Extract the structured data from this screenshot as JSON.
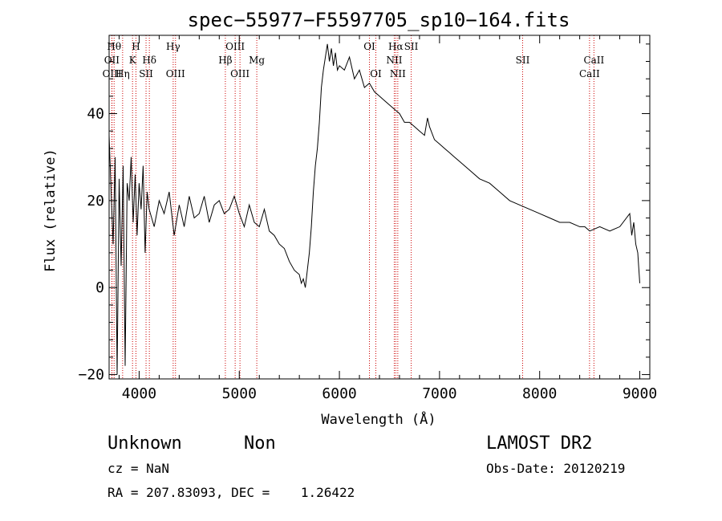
{
  "chart_data": {
    "type": "line",
    "title": "spec−55977−F5597705_sp10−164.fits",
    "xlabel": "Wavelength (Å)",
    "ylabel": "Flux (relative)",
    "xlim": [
      3700,
      9100
    ],
    "ylim": [
      -21,
      58
    ],
    "x_ticks": [
      4000,
      5000,
      6000,
      7000,
      8000,
      9000
    ],
    "x_tick_labels": [
      "4000",
      "5000",
      "6000",
      "7000",
      "8000",
      "9000"
    ],
    "y_ticks": [
      -20,
      0,
      20,
      40
    ],
    "y_tick_labels": [
      "−20",
      "0",
      "20",
      "40"
    ],
    "grid": false,
    "series": [
      {
        "color": "#000000",
        "x": [
          3700,
          3720,
          3740,
          3760,
          3780,
          3800,
          3820,
          3840,
          3860,
          3880,
          3900,
          3920,
          3940,
          3960,
          3980,
          4000,
          4020,
          4040,
          4060,
          4080,
          4100,
          4150,
          4200,
          4250,
          4300,
          4350,
          4400,
          4450,
          4500,
          4550,
          4600,
          4650,
          4700,
          4750,
          4800,
          4850,
          4900,
          4950,
          5000,
          5050,
          5100,
          5150,
          5200,
          5250,
          5300,
          5350,
          5400,
          5450,
          5500,
          5550,
          5600,
          5620,
          5640,
          5660,
          5680,
          5700,
          5720,
          5740,
          5760,
          5780,
          5800,
          5820,
          5840,
          5860,
          5880,
          5900,
          5920,
          5940,
          5960,
          5980,
          6000,
          6050,
          6100,
          6150,
          6200,
          6250,
          6300,
          6350,
          6400,
          6450,
          6500,
          6550,
          6600,
          6650,
          6700,
          6750,
          6800,
          6850,
          6880,
          6900,
          6950,
          7000,
          7050,
          7100,
          7150,
          7200,
          7300,
          7400,
          7500,
          7600,
          7700,
          7800,
          7900,
          8000,
          8100,
          8200,
          8300,
          8400,
          8450,
          8500,
          8600,
          8700,
          8800,
          8900,
          8920,
          8940,
          8960,
          8980,
          9000
        ],
        "y": [
          35,
          22,
          10,
          30,
          -20,
          25,
          5,
          28,
          -18,
          24,
          20,
          30,
          15,
          26,
          12,
          24,
          18,
          28,
          8,
          22,
          18,
          14,
          20,
          17,
          22,
          12,
          19,
          14,
          21,
          16,
          17,
          21,
          15,
          19,
          20,
          17,
          18,
          21,
          17,
          14,
          19,
          15,
          14,
          18,
          13,
          12,
          10,
          9,
          6,
          4,
          3,
          1,
          2,
          0,
          4,
          8,
          14,
          22,
          28,
          32,
          38,
          46,
          50,
          53,
          56,
          52,
          55,
          51,
          54,
          50,
          51,
          50,
          53,
          48,
          50,
          46,
          47,
          45,
          44,
          43,
          42,
          41,
          40,
          38,
          38,
          37,
          36,
          35,
          39,
          37,
          34,
          33,
          32,
          31,
          30,
          29,
          27,
          25,
          24,
          22,
          20,
          19,
          18,
          17,
          16,
          15,
          15,
          14,
          14,
          13,
          14,
          13,
          14,
          17,
          12,
          15,
          10,
          8,
          1
        ]
      }
    ],
    "lines": [
      {
        "x": 3727,
        "label": "OII",
        "row": 1
      },
      {
        "x": 3729,
        "label": "OIII",
        "row": 2
      },
      {
        "x": 3750,
        "label": "Hθ",
        "row": 0
      },
      {
        "x": 3835,
        "label": "Hη",
        "row": 2
      },
      {
        "x": 3934,
        "label": "K",
        "row": 1
      },
      {
        "x": 3968,
        "label": "H",
        "row": 0
      },
      {
        "x": 4069,
        "label": "SII",
        "row": 2
      },
      {
        "x": 4102,
        "label": "Hδ",
        "row": 1
      },
      {
        "x": 4340,
        "label": "Hγ",
        "row": 0
      },
      {
        "x": 4363,
        "label": "OIII",
        "row": 2
      },
      {
        "x": 4861,
        "label": "Hβ",
        "row": 1
      },
      {
        "x": 4959,
        "label": "OIII",
        "row": 0
      },
      {
        "x": 5007,
        "label": "OIII",
        "row": 2
      },
      {
        "x": 5175,
        "label": "Mg",
        "row": 1
      },
      {
        "x": 6300,
        "label": "OI",
        "row": 0
      },
      {
        "x": 6364,
        "label": "OI",
        "row": 2
      },
      {
        "x": 6548,
        "label": "NII",
        "row": 1
      },
      {
        "x": 6563,
        "label": "Hα",
        "row": 0
      },
      {
        "x": 6583,
        "label": "NII",
        "row": 2
      },
      {
        "x": 6717,
        "label": "SII",
        "row": 0
      },
      {
        "x": 7830,
        "label": "SII",
        "row": 1
      },
      {
        "x": 8498,
        "label": "CaII",
        "row": 2
      },
      {
        "x": 8542,
        "label": "CaII",
        "row": 1
      }
    ]
  },
  "info": {
    "class": "Unknown",
    "subclass": "Non",
    "cz": "cz = NaN",
    "coords": "RA = 207.83093, DEC =    1.26422",
    "survey": "LAMOST DR2",
    "obs_date": "Obs-Date: 20120219"
  },
  "colors": {
    "line_marker": "#cc0000",
    "spectrum": "#000000",
    "axis": "#000000"
  }
}
